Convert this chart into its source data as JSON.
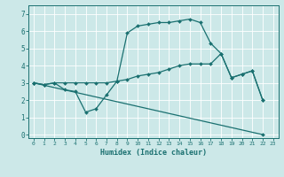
{
  "xlabel": "Humidex (Indice chaleur)",
  "background_color": "#cce8e8",
  "line_color": "#1a7070",
  "xlim": [
    -0.5,
    23.5
  ],
  "ylim": [
    -0.2,
    7.5
  ],
  "xticks": [
    0,
    1,
    2,
    3,
    4,
    5,
    6,
    7,
    8,
    9,
    10,
    11,
    12,
    13,
    14,
    15,
    16,
    17,
    18,
    19,
    20,
    21,
    22,
    23
  ],
  "yticks": [
    0,
    1,
    2,
    3,
    4,
    5,
    6,
    7
  ],
  "lines": [
    {
      "x": [
        0,
        1,
        2,
        3,
        4,
        5,
        6,
        7,
        8,
        9,
        10,
        11,
        12,
        13,
        14,
        15,
        16,
        17,
        18,
        19,
        20,
        21,
        22
      ],
      "y": [
        3.0,
        2.9,
        3.0,
        2.6,
        2.5,
        1.3,
        1.5,
        2.3,
        3.1,
        5.9,
        6.3,
        6.4,
        6.5,
        6.5,
        6.6,
        6.7,
        6.5,
        5.3,
        4.7,
        3.3,
        3.5,
        3.7,
        2.0
      ]
    },
    {
      "x": [
        0,
        1,
        2,
        3,
        4,
        5,
        6,
        7,
        8,
        9,
        10,
        11,
        12,
        13,
        14,
        15,
        16,
        17,
        18,
        19,
        20,
        21,
        22
      ],
      "y": [
        3.0,
        2.9,
        3.0,
        3.0,
        3.0,
        3.0,
        3.0,
        3.0,
        3.1,
        3.2,
        3.4,
        3.5,
        3.6,
        3.8,
        4.0,
        4.1,
        4.1,
        4.1,
        4.7,
        3.3,
        3.5,
        3.7,
        2.0
      ]
    },
    {
      "x": [
        0,
        22
      ],
      "y": [
        3.0,
        0.0
      ]
    }
  ]
}
